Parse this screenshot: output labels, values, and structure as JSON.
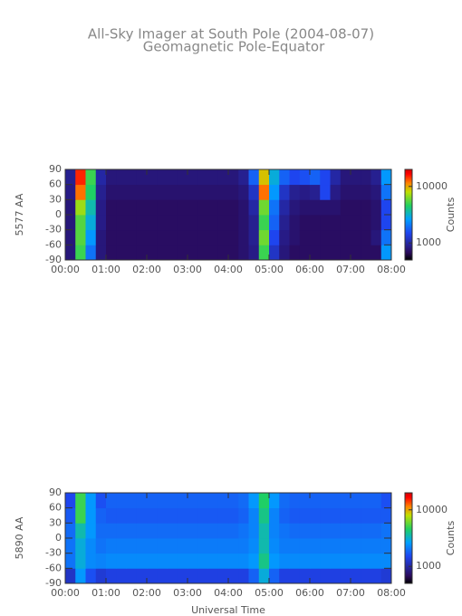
{
  "title": "All-Sky Imager at South Pole (2004-08-07)",
  "subtitle": "Geomagnetic Pole-Equator",
  "xlabel": "Universal Time",
  "chart_data": [
    {
      "type": "heatmap",
      "ylabel": "5577 AA",
      "xlim": [
        0,
        8
      ],
      "xticks": [
        {
          "value": 0,
          "label": "00:00"
        },
        {
          "value": 1,
          "label": "01:00"
        },
        {
          "value": 2,
          "label": "02:00"
        },
        {
          "value": 3,
          "label": "03:00"
        },
        {
          "value": 4,
          "label": "04:00"
        },
        {
          "value": 5,
          "label": "05:00"
        },
        {
          "value": 6,
          "label": "06:00"
        },
        {
          "value": 7,
          "label": "07:00"
        },
        {
          "value": 8,
          "label": "08:00"
        }
      ],
      "ylim": [
        -90,
        90
      ],
      "yticks": [
        -90,
        -60,
        -30,
        0,
        30,
        60,
        90
      ],
      "xbins": [
        0,
        0.25,
        0.5,
        0.75,
        1,
        1.25,
        1.5,
        1.75,
        2,
        2.25,
        2.5,
        2.75,
        3,
        3.25,
        3.5,
        3.75,
        4,
        4.25,
        4.5,
        4.75,
        5,
        5.25,
        5.5,
        5.75,
        6,
        6.25,
        6.5,
        6.75,
        7,
        7.25,
        7.5,
        7.75,
        8
      ],
      "ybins": [
        -90,
        -60,
        -30,
        0,
        30,
        60,
        90
      ],
      "z": [
        [
          800,
          5000,
          2000,
          800,
          700,
          700,
          700,
          700,
          700,
          700,
          700,
          700,
          700,
          700,
          700,
          700,
          700,
          750,
          850,
          5000,
          1200,
          800,
          700,
          700,
          700,
          700,
          700,
          700,
          700,
          700,
          700,
          2500
        ],
        [
          800,
          5500,
          2500,
          800,
          700,
          700,
          700,
          700,
          700,
          700,
          700,
          700,
          700,
          700,
          700,
          700,
          700,
          750,
          900,
          6000,
          1500,
          850,
          750,
          700,
          700,
          700,
          700,
          700,
          700,
          700,
          800,
          2000
        ],
        [
          800,
          5500,
          3000,
          850,
          700,
          700,
          700,
          700,
          700,
          700,
          700,
          700,
          700,
          700,
          700,
          700,
          700,
          750,
          900,
          5000,
          1800,
          900,
          750,
          700,
          700,
          700,
          700,
          700,
          700,
          700,
          750,
          1500
        ],
        [
          800,
          7000,
          3500,
          850,
          700,
          700,
          700,
          700,
          700,
          700,
          700,
          700,
          700,
          700,
          700,
          700,
          700,
          750,
          1000,
          6000,
          2000,
          1000,
          800,
          750,
          750,
          750,
          750,
          700,
          700,
          700,
          750,
          1500
        ],
        [
          850,
          12000,
          4500,
          900,
          750,
          750,
          750,
          750,
          750,
          750,
          750,
          750,
          750,
          750,
          750,
          750,
          750,
          800,
          1200,
          12000,
          2500,
          1200,
          900,
          850,
          900,
          1500,
          850,
          750,
          750,
          750,
          800,
          2000
        ],
        [
          900,
          15000,
          5000,
          1000,
          800,
          800,
          800,
          800,
          800,
          800,
          800,
          800,
          800,
          800,
          800,
          800,
          800,
          900,
          1800,
          9000,
          3000,
          1800,
          1500,
          1600,
          1800,
          1500,
          1000,
          800,
          800,
          800,
          900,
          2500
        ]
      ],
      "colorbar": {
        "label": "Counts",
        "lim": [
          500,
          20000
        ],
        "ticks": [
          1000,
          10000
        ],
        "log": true
      }
    },
    {
      "type": "heatmap",
      "ylabel": "5890 AA",
      "xlim": [
        0,
        8
      ],
      "xticks": [
        {
          "value": 0,
          "label": "00:00"
        },
        {
          "value": 1,
          "label": "01:00"
        },
        {
          "value": 2,
          "label": "02:00"
        },
        {
          "value": 3,
          "label": "03:00"
        },
        {
          "value": 4,
          "label": "04:00"
        },
        {
          "value": 5,
          "label": "05:00"
        },
        {
          "value": 6,
          "label": "06:00"
        },
        {
          "value": 7,
          "label": "07:00"
        },
        {
          "value": 8,
          "label": "08:00"
        }
      ],
      "ylim": [
        -90,
        90
      ],
      "yticks": [
        -90,
        -60,
        -30,
        0,
        30,
        60,
        90
      ],
      "xbins": [
        0,
        0.25,
        0.5,
        0.75,
        1,
        1.25,
        1.5,
        1.75,
        2,
        2.25,
        2.5,
        2.75,
        3,
        3.25,
        3.5,
        3.75,
        4,
        4.25,
        4.5,
        4.75,
        5,
        5.25,
        5.5,
        5.75,
        6,
        6.25,
        6.5,
        6.75,
        7,
        7.25,
        7.5,
        7.75,
        8
      ],
      "ybins": [
        -90,
        -60,
        -30,
        0,
        30,
        60,
        90
      ],
      "z": [
        [
          1200,
          2500,
          1600,
          1300,
          1400,
          1400,
          1400,
          1400,
          1400,
          1400,
          1400,
          1400,
          1400,
          1400,
          1400,
          1400,
          1400,
          1400,
          1800,
          3000,
          1800,
          1400,
          1400,
          1400,
          1400,
          1400,
          1400,
          1400,
          1400,
          1400,
          1400,
          1300
        ],
        [
          2000,
          3000,
          2300,
          2200,
          2300,
          2300,
          2300,
          2300,
          2300,
          2300,
          2300,
          2300,
          2300,
          2300,
          2300,
          2300,
          2300,
          2300,
          2500,
          4000,
          2500,
          2300,
          2300,
          2300,
          2300,
          2300,
          2300,
          2300,
          2300,
          2300,
          2300,
          2300
        ],
        [
          2000,
          3000,
          2300,
          2000,
          2100,
          2100,
          2100,
          2100,
          2100,
          2100,
          2100,
          2100,
          2100,
          2100,
          2100,
          2100,
          2100,
          2100,
          2300,
          3500,
          2300,
          2100,
          2100,
          2100,
          2100,
          2100,
          2100,
          2100,
          2100,
          2100,
          2100,
          2100
        ],
        [
          1900,
          3500,
          2500,
          1900,
          1900,
          1900,
          1900,
          1900,
          1900,
          1900,
          1900,
          1900,
          1900,
          1900,
          1900,
          1900,
          1900,
          2000,
          2200,
          3500,
          2200,
          2000,
          1900,
          1900,
          1900,
          1900,
          1900,
          1900,
          1900,
          1900,
          1900,
          2000
        ],
        [
          1700,
          5000,
          2500,
          1800,
          1700,
          1700,
          1700,
          1700,
          1700,
          1700,
          1700,
          1700,
          1700,
          1700,
          1700,
          1700,
          1700,
          1800,
          2200,
          4000,
          2200,
          1800,
          1700,
          1700,
          1700,
          1700,
          1700,
          1700,
          1700,
          1700,
          1700,
          1700
        ],
        [
          1500,
          5000,
          2500,
          1600,
          1800,
          1800,
          1800,
          1800,
          1800,
          1800,
          1800,
          1800,
          1800,
          1800,
          1800,
          1800,
          1800,
          1900,
          2500,
          4500,
          2500,
          1900,
          1800,
          1800,
          1800,
          1800,
          1800,
          1800,
          1800,
          1800,
          1800,
          1600
        ]
      ],
      "colorbar": {
        "label": "Counts",
        "lim": [
          500,
          20000
        ],
        "ticks": [
          1000,
          10000
        ],
        "log": true
      }
    }
  ],
  "colorscale": [
    [
      0,
      "#000000"
    ],
    [
      0.08,
      "#2a0a5a"
    ],
    [
      0.3,
      "#1e46f0"
    ],
    [
      0.45,
      "#00a0ff"
    ],
    [
      0.6,
      "#20d060"
    ],
    [
      0.75,
      "#c0e000"
    ],
    [
      0.85,
      "#ff8000"
    ],
    [
      0.95,
      "#ff0000"
    ],
    [
      1,
      "#d00000"
    ]
  ]
}
